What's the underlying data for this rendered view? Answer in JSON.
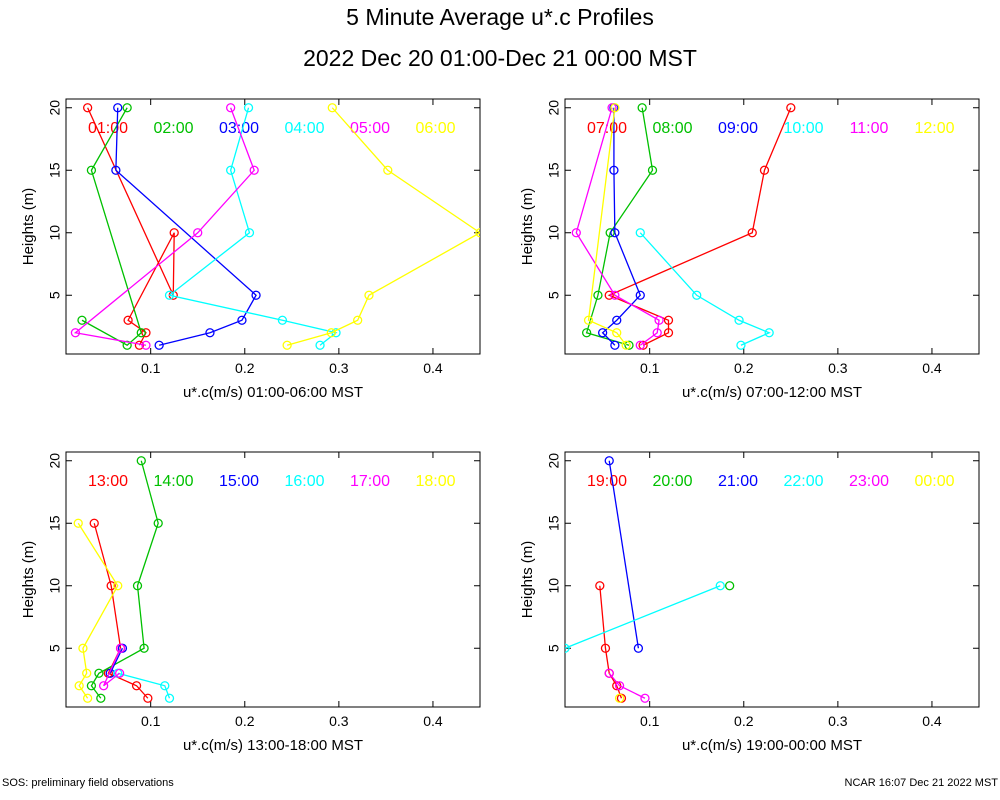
{
  "title": "5 Minute Average u*.c Profiles",
  "subtitle": "2022 Dec 20 01:00-Dec 21 00:00 MST",
  "footer": {
    "left": "SOS: preliminary field observations",
    "right": "NCAR 16:07 Dec 21 2022 MST"
  },
  "colors": {
    "red": "#ff0000",
    "green": "#00c000",
    "blue": "#0000ff",
    "cyan": "#00ffff",
    "magenta": "#ff00ff",
    "yellow": "#ffff00"
  },
  "chart_data": [
    {
      "type": "line",
      "ylabel": "Heights (m)",
      "xlabel": "u*.c(m/s) 01:00-06:00 MST",
      "xlim": [
        0.01,
        0.45
      ],
      "ylim": [
        0.3,
        20.7
      ],
      "xticks": [
        0.1,
        0.2,
        0.3,
        0.4
      ],
      "yticks": [
        5,
        10,
        15,
        20
      ],
      "series": [
        {
          "name": "01:00",
          "color": "#ff0000",
          "points": [
            [
              0.033,
              20
            ],
            [
              0.124,
              5
            ],
            [
              0.125,
              10
            ],
            [
              0.076,
              3
            ],
            [
              0.095,
              2
            ],
            [
              0.088,
              1
            ]
          ]
        },
        {
          "name": "02:00",
          "color": "#00c000",
          "points": [
            [
              0.075,
              20
            ],
            [
              0.037,
              15
            ],
            [
              0.09,
              2
            ],
            [
              0.075,
              1
            ],
            [
              0.027,
              3
            ]
          ]
        },
        {
          "name": "03:00",
          "color": "#0000ff",
          "points": [
            [
              0.065,
              20
            ],
            [
              0.063,
              15
            ],
            [
              0.212,
              5
            ],
            [
              0.197,
              3
            ],
            [
              0.163,
              2
            ],
            [
              0.109,
              1
            ]
          ]
        },
        {
          "name": "04:00",
          "color": "#00ffff",
          "points": [
            [
              0.204,
              20
            ],
            [
              0.185,
              15
            ],
            [
              0.205,
              10
            ],
            [
              0.12,
              5
            ],
            [
              0.24,
              3
            ],
            [
              0.297,
              2
            ],
            [
              0.28,
              1
            ]
          ]
        },
        {
          "name": "05:00",
          "color": "#ff00ff",
          "points": [
            [
              0.185,
              20
            ],
            [
              0.21,
              15
            ],
            [
              0.15,
              10
            ],
            [
              0.02,
              2
            ],
            [
              0.095,
              1
            ]
          ]
        },
        {
          "name": "06:00",
          "color": "#ffff00",
          "points": [
            [
              0.293,
              20
            ],
            [
              0.352,
              15
            ],
            [
              0.45,
              10
            ],
            [
              0.332,
              5
            ],
            [
              0.32,
              3
            ],
            [
              0.292,
              2
            ],
            [
              0.245,
              1
            ]
          ]
        }
      ]
    },
    {
      "type": "line",
      "ylabel": "Heights (m)",
      "xlabel": "u*.c(m/s) 07:00-12:00 MST",
      "xlim": [
        0.01,
        0.45
      ],
      "ylim": [
        0.3,
        20.7
      ],
      "xticks": [
        0.1,
        0.2,
        0.3,
        0.4
      ],
      "yticks": [
        5,
        10,
        15,
        20
      ],
      "series": [
        {
          "name": "07:00",
          "color": "#ff0000",
          "points": [
            [
              0.25,
              20
            ],
            [
              0.222,
              15
            ],
            [
              0.209,
              10
            ],
            [
              0.057,
              5
            ],
            [
              0.12,
              3
            ],
            [
              0.12,
              2
            ],
            [
              0.093,
              1
            ]
          ]
        },
        {
          "name": "08:00",
          "color": "#00c000",
          "points": [
            [
              0.092,
              20
            ],
            [
              0.103,
              15
            ],
            [
              0.058,
              10
            ],
            [
              0.045,
              5
            ],
            [
              0.033,
              2
            ],
            [
              0.078,
              1
            ]
          ]
        },
        {
          "name": "09:00",
          "color": "#0000ff",
          "points": [
            [
              0.062,
              20
            ],
            [
              0.062,
              15
            ],
            [
              0.063,
              10
            ],
            [
              0.09,
              5
            ],
            [
              0.065,
              3
            ],
            [
              0.05,
              2
            ],
            [
              0.063,
              1
            ]
          ]
        },
        {
          "name": "10:00",
          "color": "#00ffff",
          "points": [
            [
              0.09,
              10
            ],
            [
              0.15,
              5
            ],
            [
              0.195,
              3
            ],
            [
              0.227,
              2
            ],
            [
              0.197,
              1
            ]
          ]
        },
        {
          "name": "11:00",
          "color": "#ff00ff",
          "points": [
            [
              0.06,
              20
            ],
            [
              0.022,
              10
            ],
            [
              0.063,
              5
            ],
            [
              0.11,
              3
            ],
            [
              0.108,
              2
            ],
            [
              0.09,
              1
            ]
          ]
        },
        {
          "name": "12:00",
          "color": "#ffff00",
          "points": [
            [
              0.063,
              20
            ],
            [
              0.035,
              3
            ],
            [
              0.065,
              2
            ],
            [
              0.075,
              1
            ]
          ]
        }
      ]
    },
    {
      "type": "line",
      "ylabel": "Heights (m)",
      "xlabel": "u*.c(m/s) 13:00-18:00 MST",
      "xlim": [
        0.01,
        0.45
      ],
      "ylim": [
        0.3,
        20.7
      ],
      "xticks": [
        0.1,
        0.2,
        0.3,
        0.4
      ],
      "yticks": [
        5,
        10,
        15,
        20
      ],
      "series": [
        {
          "name": "13:00",
          "color": "#ff0000",
          "points": [
            [
              0.04,
              15
            ],
            [
              0.058,
              10
            ],
            [
              0.068,
              5
            ],
            [
              0.055,
              3
            ],
            [
              0.085,
              2
            ],
            [
              0.097,
              1
            ]
          ]
        },
        {
          "name": "14:00",
          "color": "#00c000",
          "points": [
            [
              0.09,
              20
            ],
            [
              0.108,
              15
            ],
            [
              0.086,
              10
            ],
            [
              0.093,
              5
            ],
            [
              0.045,
              3
            ],
            [
              0.037,
              2
            ],
            [
              0.047,
              1
            ]
          ]
        },
        {
          "name": "15:00",
          "color": "#0000ff",
          "points": [
            [
              0.07,
              5
            ],
            [
              0.057,
              3
            ]
          ]
        },
        {
          "name": "16:00",
          "color": "#00ffff",
          "points": [
            [
              0.065,
              3
            ],
            [
              0.115,
              2
            ],
            [
              0.12,
              1
            ]
          ]
        },
        {
          "name": "17:00",
          "color": "#ff00ff",
          "points": [
            [
              0.068,
              5
            ],
            [
              0.05,
              2
            ],
            [
              0.067,
              3
            ]
          ]
        },
        {
          "name": "18:00",
          "color": "#ffff00",
          "points": [
            [
              0.023,
              15
            ],
            [
              0.065,
              10
            ],
            [
              0.028,
              5
            ],
            [
              0.032,
              3
            ],
            [
              0.024,
              2
            ],
            [
              0.033,
              1
            ]
          ]
        }
      ]
    },
    {
      "type": "line",
      "ylabel": "Heights (m)",
      "xlabel": "u*.c(m/s) 19:00-00:00 MST",
      "xlim": [
        0.01,
        0.45
      ],
      "ylim": [
        0.3,
        20.7
      ],
      "xticks": [
        0.1,
        0.2,
        0.3,
        0.4
      ],
      "yticks": [
        5,
        10,
        15,
        20
      ],
      "series": [
        {
          "name": "19:00",
          "color": "#ff0000",
          "points": [
            [
              0.047,
              10
            ],
            [
              0.053,
              5
            ],
            [
              0.057,
              3
            ],
            [
              0.065,
              2
            ],
            [
              0.07,
              1
            ]
          ]
        },
        {
          "name": "20:00",
          "color": "#00c000",
          "points": [
            [
              0.185,
              10
            ]
          ]
        },
        {
          "name": "21:00",
          "color": "#0000ff",
          "points": [
            [
              0.057,
              20
            ],
            [
              0.088,
              5
            ]
          ]
        },
        {
          "name": "22:00",
          "color": "#00ffff",
          "points": [
            [
              0.175,
              10
            ],
            [
              0.01,
              5
            ]
          ]
        },
        {
          "name": "23:00",
          "color": "#ff00ff",
          "points": [
            [
              0.057,
              3
            ],
            [
              0.068,
              2
            ],
            [
              0.095,
              1
            ]
          ]
        },
        {
          "name": "00:00",
          "color": "#ffff00",
          "points": [
            [
              0.068,
              1
            ]
          ]
        }
      ]
    }
  ]
}
